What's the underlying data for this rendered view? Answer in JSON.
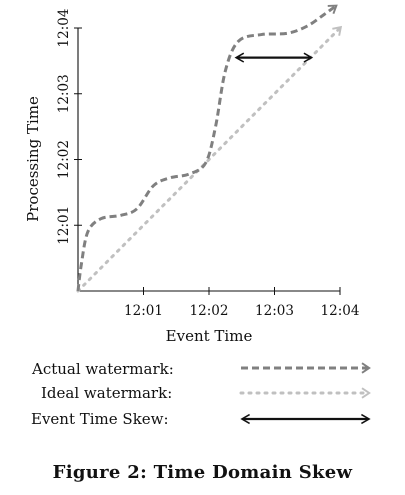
{
  "caption": "Figure 2:  Time Domain Skew",
  "chart_data": {
    "type": "line",
    "title": "",
    "xlabel": "Event Time",
    "ylabel": "Processing Time",
    "xlim": [
      12.0,
      12.04
    ],
    "ylim": [
      12.0,
      12.04
    ],
    "x_ticks": [
      {
        "value": 12.01,
        "label": "12:01"
      },
      {
        "value": 12.02,
        "label": "12:02"
      },
      {
        "value": 12.03,
        "label": "12:03"
      },
      {
        "value": 12.04,
        "label": "12:04"
      }
    ],
    "y_ticks": [
      {
        "value": 12.01,
        "label": "12:01"
      },
      {
        "value": 12.02,
        "label": "12:02"
      },
      {
        "value": 12.03,
        "label": "12:03"
      },
      {
        "value": 12.04,
        "label": "12:04"
      }
    ],
    "grid": false,
    "series": [
      {
        "name": "Actual watermark:",
        "color": "#808080",
        "style": "dashed",
        "points": [
          [
            12.0,
            12.0
          ],
          [
            12.0005,
            12.004
          ],
          [
            12.0015,
            12.009
          ],
          [
            12.0035,
            12.011
          ],
          [
            12.0065,
            12.0115
          ],
          [
            12.009,
            12.0125
          ],
          [
            12.0115,
            12.016
          ],
          [
            12.014,
            12.0172
          ],
          [
            12.017,
            12.0178
          ],
          [
            12.0195,
            12.0195
          ],
          [
            12.021,
            12.025
          ],
          [
            12.0225,
            12.0335
          ],
          [
            12.0245,
            12.038
          ],
          [
            12.028,
            12.039
          ],
          [
            12.032,
            12.0392
          ],
          [
            12.035,
            12.0403
          ],
          [
            12.0375,
            12.042
          ],
          [
            12.0393,
            12.0433
          ]
        ]
      },
      {
        "name": "Ideal watermark:",
        "color": "#c0c0c0",
        "style": "dotted",
        "points": [
          [
            12.0,
            12.0
          ],
          [
            12.04,
            12.04
          ]
        ]
      }
    ],
    "annotations": [
      {
        "name": "Event Time Skew:",
        "type": "double-arrow",
        "color": "#111111",
        "x_from": 12.0243,
        "x_to": 12.0355,
        "y": 12.0355
      }
    ],
    "legend": {
      "placement": "bottom",
      "entries": [
        {
          "label": "Actual watermark:",
          "style": "dashed",
          "color": "#808080"
        },
        {
          "label": "Ideal watermark:",
          "style": "dotted",
          "color": "#c0c0c0"
        },
        {
          "label": "Event Time Skew:",
          "style": "double-arrow",
          "color": "#111111"
        }
      ]
    }
  }
}
